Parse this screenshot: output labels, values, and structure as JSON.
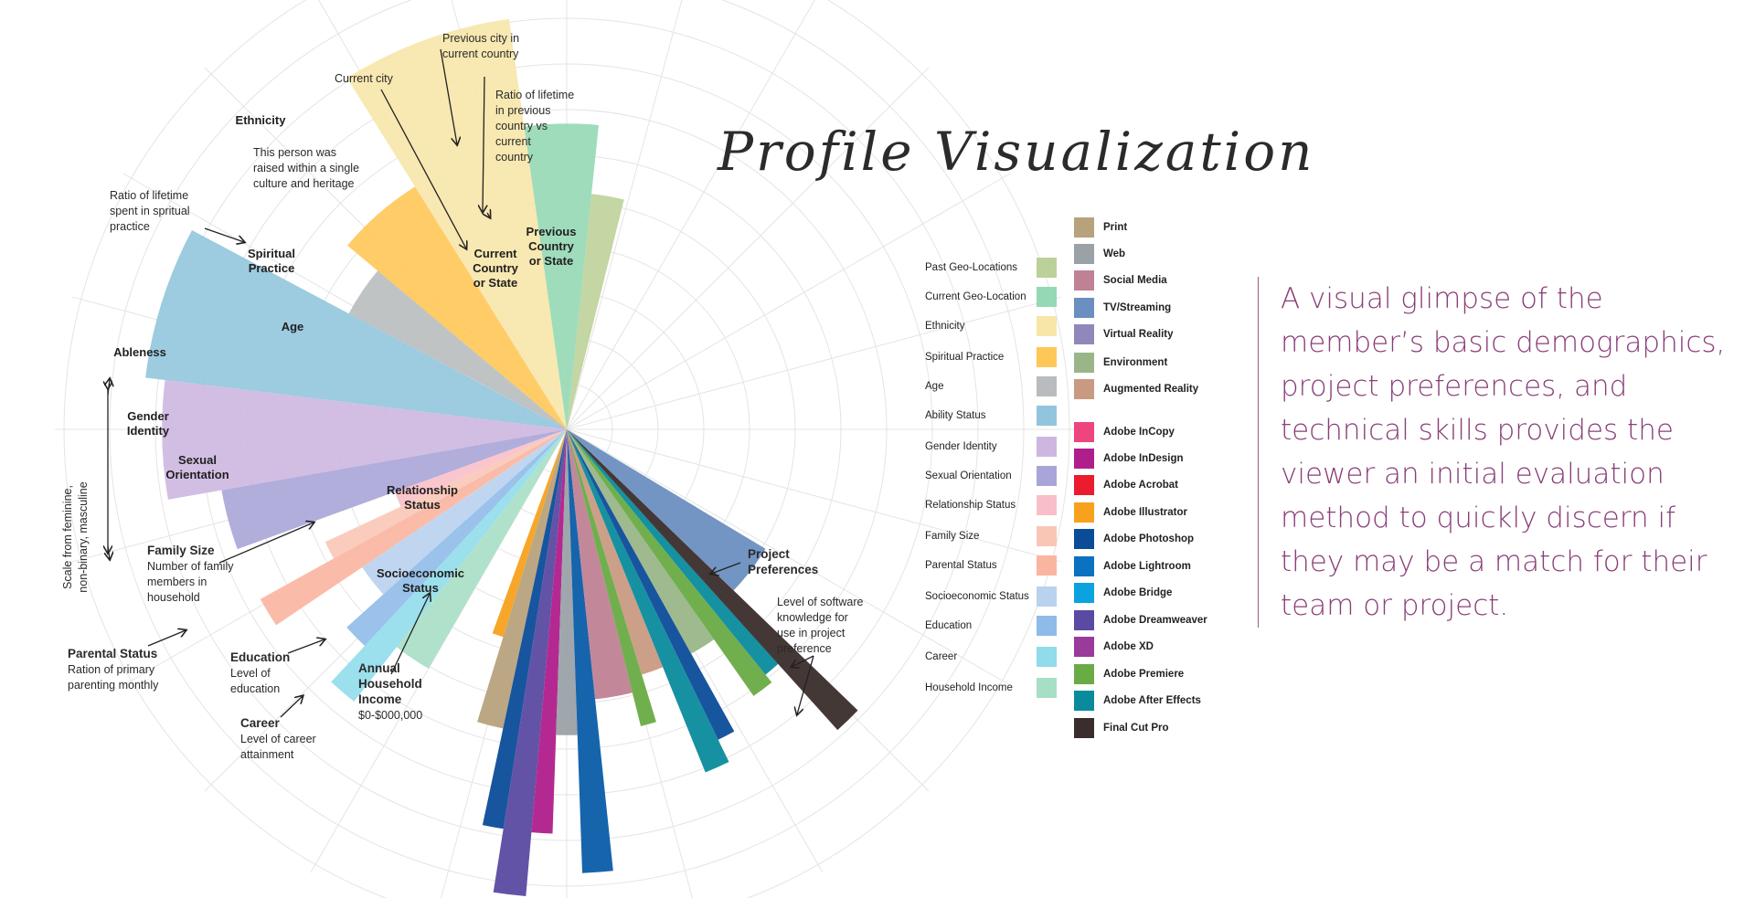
{
  "title": "Profile Visualization",
  "description": "A visual glimpse of the member’s basic demographics, project preferences, and technical skills provides the viewer an initial evaluation method to quickly discern if they may be a match for their team or project.",
  "chart_data": {
    "type": "radial-bar",
    "title": "Profile Visualization",
    "demographics": [
      {
        "name": "Previous Country or State",
        "label": "Previous\nCountry\nor State",
        "color": "#bcd199",
        "value": 0.48
      },
      {
        "name": "Current Country or State",
        "label": "Current\nCountry\nor State",
        "color": "#94d8b5",
        "value": 0.62
      },
      {
        "name": "Ethnicity",
        "label": "Ethnicity",
        "color": "#f7e6a8",
        "value": 0.84
      },
      {
        "name": "Spiritual Practice",
        "label": "Spiritual\nPractice",
        "color": "#ffc757",
        "value": 0.58
      },
      {
        "name": "Age",
        "label": "Age",
        "color": "#b8bcbe",
        "value": 0.5
      },
      {
        "name": "Ableness",
        "label": "Ableness",
        "color": "#92c5dd",
        "value": 0.86
      },
      {
        "name": "Gender Identity",
        "label": "Gender\nIdentity",
        "color": "#cdb7e0",
        "value": 0.82
      },
      {
        "name": "Sexual Orientation",
        "label": "Sexual\nOrientation",
        "color": "#a9a5d8",
        "value": 0.71
      },
      {
        "name": "Relationship Status",
        "label": "Relationship\nStatus",
        "color": "#f9bfc8",
        "value": 0.37
      },
      {
        "name": "Family Size",
        "label": "",
        "color": "#f9c6b6",
        "value": 0.54
      },
      {
        "name": "Parental Status",
        "label": "",
        "color": "#f9b5a0",
        "value": 0.71
      },
      {
        "name": "Socioeconomic Status",
        "label": "Socioeconomic\nStatus",
        "color": "#b9d2ee",
        "value": 0.5
      },
      {
        "name": "Education",
        "label": "",
        "color": "#8fbbe8",
        "value": 0.6
      },
      {
        "name": "Career",
        "label": "",
        "color": "#91dbeb",
        "value": 0.7
      },
      {
        "name": "Household Income",
        "label": "",
        "color": "#a7dfc5",
        "value": 0.56
      }
    ],
    "preferences_and_software": [
      {
        "name": "Adobe Illustrator",
        "color": "#f7a11d",
        "value": 0.44
      },
      {
        "name": "Print",
        "color": "#b7a27c",
        "value": 0.62
      },
      {
        "name": "Adobe Photoshop",
        "color": "#0b4c99",
        "value": 0.82
      },
      {
        "name": "Adobe Dreamweaver",
        "color": "#5b4aa1",
        "value": 0.95
      },
      {
        "name": "Adobe InDesign",
        "color": "#b01e8b",
        "value": 0.82
      },
      {
        "name": "Web",
        "color": "#9aa2a8",
        "value": 0.62
      },
      {
        "name": "Adobe Lightroom",
        "color": "#0a5ca8",
        "value": 0.9
      },
      {
        "name": "Social Media",
        "color": "#bf8295",
        "value": 0.55
      },
      {
        "name": "Adobe Premiere",
        "color": "#69ab45",
        "value": 0.62
      },
      {
        "name": "Augmented Reality",
        "color": "#c99a82",
        "value": 0.52
      },
      {
        "name": "Adobe After Effects",
        "color": "#0a8b9c",
        "value": 0.75
      },
      {
        "name": "Adobe Photoshop",
        "color": "#0b4c99",
        "value": 0.7
      },
      {
        "name": "Environment",
        "color": "#9ab688",
        "value": 0.52
      },
      {
        "name": "Adobe Premiere",
        "color": "#69ab45",
        "value": 0.66
      },
      {
        "name": "Adobe After Effects",
        "color": "#0a8b9c",
        "value": 0.64
      },
      {
        "name": "Final Cut Pro",
        "color": "#3a2d2b",
        "value": 0.82
      },
      {
        "name": "TV/Streaming",
        "color": "#6b8fc0",
        "value": 0.47
      }
    ],
    "annotations": [
      {
        "bold": "",
        "text": "Previous city in\ncurrent country"
      },
      {
        "bold": "",
        "text": "Current city"
      },
      {
        "bold": "",
        "text": "Ratio of lifetime\nin previous\ncountry vs\ncurrent\ncountry"
      },
      {
        "bold": "",
        "text": "This person was\nraised within a single\nculture and heritage"
      },
      {
        "bold": "",
        "text": "Ratio of lifetime\nspent in spritual\npractice"
      },
      {
        "bold": "Family Size",
        "text": "Number of family\nmembers in\nhousehold"
      },
      {
        "bold": "Parental Status",
        "text": "Ration of primary\nparenting monthly"
      },
      {
        "bold": "Education",
        "text": "Level of\neducation"
      },
      {
        "bold": "Career",
        "text": "Level of career\nattainment"
      },
      {
        "bold": "Annual\nHousehold\nIncome",
        "text": "$0-$000,000"
      },
      {
        "bold": "Project\nPreferences",
        "text": ""
      },
      {
        "bold": "",
        "text": "Level of software\nknowledge for\nuse in project\npreference"
      },
      {
        "bold": "",
        "text": "Scale from feminine,\nnon-binary, masculine"
      }
    ]
  },
  "legend_left": [
    {
      "label": "Past Geo-Locations",
      "color": "#bcd199"
    },
    {
      "label": "Current Geo-Location",
      "color": "#94d8b5"
    },
    {
      "label": "Ethnicity",
      "color": "#f7e6a8"
    },
    {
      "label": "Spiritual Practice",
      "color": "#ffc757"
    },
    {
      "label": "Age",
      "color": "#b8bcbe"
    },
    {
      "label": "Ability Status",
      "color": "#92c5dd"
    },
    {
      "label": "Gender Identity",
      "color": "#cdb7e0"
    },
    {
      "label": "Sexual Orientation",
      "color": "#a9a5d8"
    },
    {
      "label": "Relationship Status",
      "color": "#f9bfc8"
    },
    {
      "label": "Family Size",
      "color": "#f9c6b6"
    },
    {
      "label": "Parental Status",
      "color": "#f9b5a0"
    },
    {
      "label": "Socioeconomic Status",
      "color": "#b9d2ee"
    },
    {
      "label": "Education",
      "color": "#8fbbe8"
    },
    {
      "label": "Career",
      "color": "#91dbeb"
    },
    {
      "label": "Household Income",
      "color": "#a7dfc5"
    }
  ],
  "legend_right": [
    {
      "label": "Print",
      "color": "#b7a27c"
    },
    {
      "label": "Web",
      "color": "#9aa2a8"
    },
    {
      "label": "Social Media",
      "color": "#bf8295"
    },
    {
      "label": "TV/Streaming",
      "color": "#6b8fc0"
    },
    {
      "label": "Virtual Reality",
      "color": "#9088bb"
    },
    {
      "label": "Environment",
      "color": "#9ab688"
    },
    {
      "label": "Augmented Reality",
      "color": "#c99a82"
    },
    {
      "label": "Adobe InCopy",
      "color": "#ee4580"
    },
    {
      "label": "Adobe InDesign",
      "color": "#b01e8b"
    },
    {
      "label": "Adobe Acrobat",
      "color": "#ea1c2d"
    },
    {
      "label": "Adobe Illustrator",
      "color": "#f7a11d"
    },
    {
      "label": "Adobe Photoshop",
      "color": "#0b4c99"
    },
    {
      "label": "Adobe Lightroom",
      "color": "#0a72c0"
    },
    {
      "label": "Adobe Bridge",
      "color": "#0aa3e0"
    },
    {
      "label": "Adobe Dreamweaver",
      "color": "#5b4aa1"
    },
    {
      "label": "Adobe XD",
      "color": "#9a3a9a"
    },
    {
      "label": "Adobe Premiere",
      "color": "#69ab45"
    },
    {
      "label": "Adobe After Effects",
      "color": "#0a8b9c"
    },
    {
      "label": "Final Cut Pro",
      "color": "#3a2d2b"
    }
  ]
}
